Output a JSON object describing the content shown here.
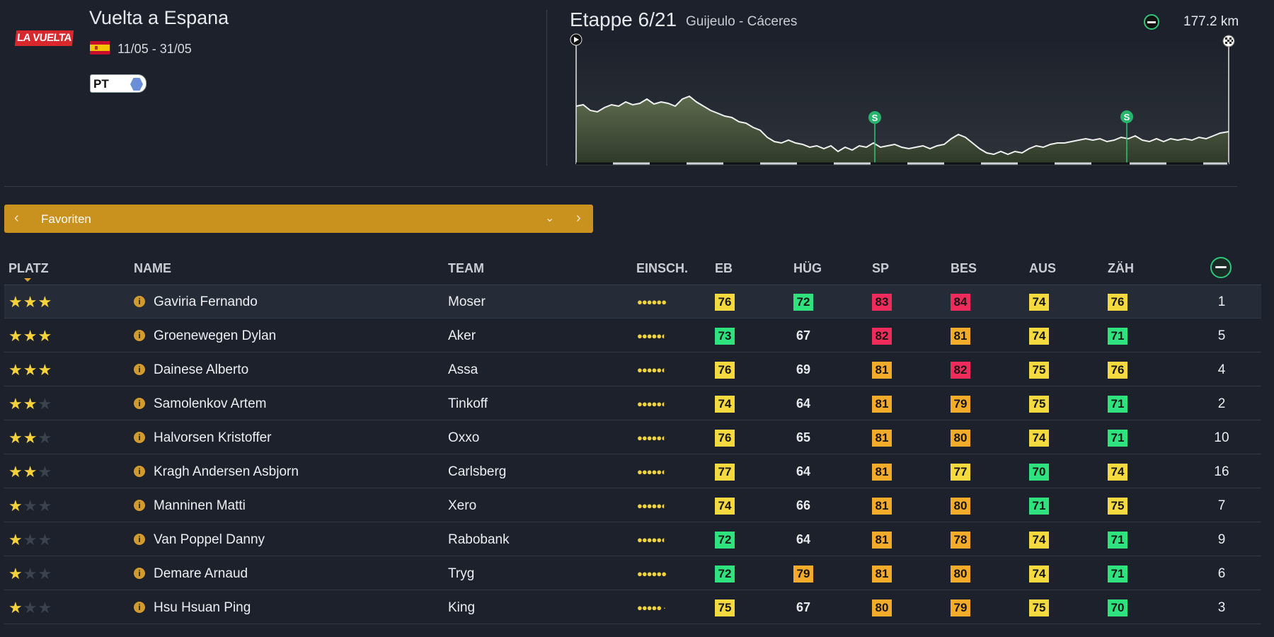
{
  "race": {
    "logo_text": "LA VUELTA",
    "title": "Vuelta a Espana",
    "dates": "11/05 - 31/05",
    "class_label": "PT",
    "flag_icon": "spain-flag-icon"
  },
  "stage": {
    "title": "Etappe 6/21",
    "route": "Guijeulo - Cáceres",
    "distance": "177.2 km",
    "type_icon": "flat-stage-icon",
    "sprint_label": "S"
  },
  "selector": {
    "label": "Favoriten",
    "prev_icon": "chevron-left-icon",
    "next_icon": "chevron-right-icon",
    "dropdown_icon": "chevron-down-icon"
  },
  "table": {
    "headers": {
      "platz": "PLATZ",
      "name": "NAME",
      "team": "TEAM",
      "einsch": "EINSCH.",
      "eb": "EB",
      "hug": "HÜG",
      "sp": "SP",
      "bes": "BES",
      "aus": "AUS",
      "zah": "ZÄH"
    },
    "colors": {
      "yellow": "#f4da3f",
      "green": "#2ee37e",
      "orange": "#f3ab2a",
      "red": "#ef2b5b"
    },
    "rows": [
      {
        "stars": 3,
        "name": "Gaviria Fernando",
        "team": "Moser",
        "dots": "●●●●●●",
        "eb": "76",
        "eb_c": "yellow",
        "hug": "72",
        "hug_c": "green",
        "sp": "83",
        "sp_c": "red",
        "bes": "84",
        "bes_c": "red",
        "aus": "74",
        "aus_c": "yellow",
        "zah": "76",
        "zah_c": "yellow",
        "rank": "1"
      },
      {
        "stars": 3,
        "name": "Groenewegen Dylan",
        "team": "Aker",
        "dots": "●●●●●◐",
        "eb": "73",
        "eb_c": "green",
        "hug": "67",
        "hug_c": "",
        "sp": "82",
        "sp_c": "red",
        "bes": "81",
        "bes_c": "orange",
        "aus": "74",
        "aus_c": "yellow",
        "zah": "71",
        "zah_c": "green",
        "rank": "5"
      },
      {
        "stars": 3,
        "name": "Dainese Alberto",
        "team": "Assa",
        "dots": "●●●●●◐",
        "eb": "76",
        "eb_c": "yellow",
        "hug": "69",
        "hug_c": "",
        "sp": "81",
        "sp_c": "orange",
        "bes": "82",
        "bes_c": "red",
        "aus": "75",
        "aus_c": "yellow",
        "zah": "76",
        "zah_c": "yellow",
        "rank": "4"
      },
      {
        "stars": 2,
        "name": "Samolenkov Artem",
        "team": "Tinkoff",
        "dots": "●●●●●◐",
        "eb": "74",
        "eb_c": "yellow",
        "hug": "64",
        "hug_c": "",
        "sp": "81",
        "sp_c": "orange",
        "bes": "79",
        "bes_c": "orange",
        "aus": "75",
        "aus_c": "yellow",
        "zah": "71",
        "zah_c": "green",
        "rank": "2"
      },
      {
        "stars": 2,
        "name": "Halvorsen Kristoffer",
        "team": "Oxxo",
        "dots": "●●●●●◐",
        "eb": "76",
        "eb_c": "yellow",
        "hug": "65",
        "hug_c": "",
        "sp": "81",
        "sp_c": "orange",
        "bes": "80",
        "bes_c": "orange",
        "aus": "74",
        "aus_c": "yellow",
        "zah": "71",
        "zah_c": "green",
        "rank": "10"
      },
      {
        "stars": 2,
        "name": "Kragh Andersen Asbjorn",
        "team": "Carlsberg",
        "dots": "●●●●●◐",
        "eb": "77",
        "eb_c": "yellow",
        "hug": "64",
        "hug_c": "",
        "sp": "81",
        "sp_c": "orange",
        "bes": "77",
        "bes_c": "yellow",
        "aus": "70",
        "aus_c": "green",
        "zah": "74",
        "zah_c": "yellow",
        "rank": "16"
      },
      {
        "stars": 1,
        "name": "Manninen Matti",
        "team": "Xero",
        "dots": "●●●●●◐",
        "eb": "74",
        "eb_c": "yellow",
        "hug": "66",
        "hug_c": "",
        "sp": "81",
        "sp_c": "orange",
        "bes": "80",
        "bes_c": "orange",
        "aus": "71",
        "aus_c": "green",
        "zah": "75",
        "zah_c": "yellow",
        "rank": "7"
      },
      {
        "stars": 1,
        "name": "Van Poppel Danny",
        "team": "Rabobank",
        "dots": "●●●●●◐",
        "eb": "72",
        "eb_c": "green",
        "hug": "64",
        "hug_c": "",
        "sp": "81",
        "sp_c": "orange",
        "bes": "78",
        "bes_c": "orange",
        "aus": "74",
        "aus_c": "yellow",
        "zah": "71",
        "zah_c": "green",
        "rank": "9"
      },
      {
        "stars": 1,
        "name": "Demare Arnaud",
        "team": "Tryg",
        "dots": "●●●●●●",
        "eb": "72",
        "eb_c": "green",
        "hug": "79",
        "hug_c": "orange",
        "sp": "81",
        "sp_c": "orange",
        "bes": "80",
        "bes_c": "orange",
        "aus": "74",
        "aus_c": "yellow",
        "zah": "71",
        "zah_c": "green",
        "rank": "6"
      },
      {
        "stars": 1,
        "name": "Hsu Hsuan Ping",
        "team": "King",
        "dots": "●●●●● ·",
        "eb": "75",
        "eb_c": "yellow",
        "hug": "67",
        "hug_c": "",
        "sp": "80",
        "sp_c": "orange",
        "bes": "79",
        "bes_c": "orange",
        "aus": "75",
        "aus_c": "yellow",
        "zah": "70",
        "zah_c": "green",
        "rank": "3"
      }
    ]
  }
}
